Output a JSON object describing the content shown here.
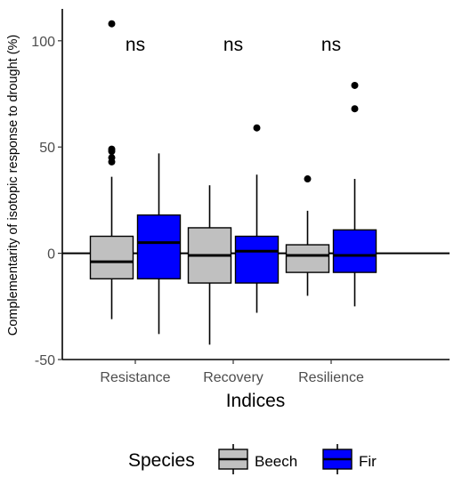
{
  "chart_data": {
    "type": "boxplot",
    "xlabel": "Indices",
    "ylabel": "Complementarity of isotopic response to drought (%)",
    "ylim": [
      -50,
      115
    ],
    "y_ticks": [
      "-50",
      "0",
      "50",
      "100"
    ],
    "categories": [
      "Resistance",
      "Recovery",
      "Resilience"
    ],
    "reference_line_y": 0,
    "grid": false,
    "annotations": [
      "ns",
      "ns",
      "ns"
    ],
    "legend": {
      "title": "Species",
      "position": "bottom",
      "entries": [
        {
          "label": "Beech",
          "color": "#c0c0c0"
        },
        {
          "label": "Fir",
          "color": "#0000ff"
        }
      ]
    },
    "series": [
      {
        "name": "Beech",
        "color": "#c0c0c0",
        "boxes": [
          {
            "category": "Resistance",
            "whisker_low": -31,
            "q1": -12,
            "median": -4,
            "q3": 8,
            "whisker_high": 36,
            "outliers": [
              43,
              45,
              48,
              49,
              108
            ]
          },
          {
            "category": "Recovery",
            "whisker_low": -43,
            "q1": -14,
            "median": -1,
            "q3": 12,
            "whisker_high": 32,
            "outliers": []
          },
          {
            "category": "Resilience",
            "whisker_low": -20,
            "q1": -9,
            "median": -1,
            "q3": 4,
            "whisker_high": 20,
            "outliers": [
              35
            ]
          }
        ]
      },
      {
        "name": "Fir",
        "color": "#0000ff",
        "boxes": [
          {
            "category": "Resistance",
            "whisker_low": -38,
            "q1": -12,
            "median": 5,
            "q3": 18,
            "whisker_high": 47,
            "outliers": []
          },
          {
            "category": "Recovery",
            "whisker_low": -28,
            "q1": -14,
            "median": 1,
            "q3": 8,
            "whisker_high": 37,
            "outliers": [
              59
            ]
          },
          {
            "category": "Resilience",
            "whisker_low": -25,
            "q1": -9,
            "median": -1,
            "q3": 11,
            "whisker_high": 35,
            "outliers": [
              68,
              79
            ]
          }
        ]
      }
    ]
  }
}
